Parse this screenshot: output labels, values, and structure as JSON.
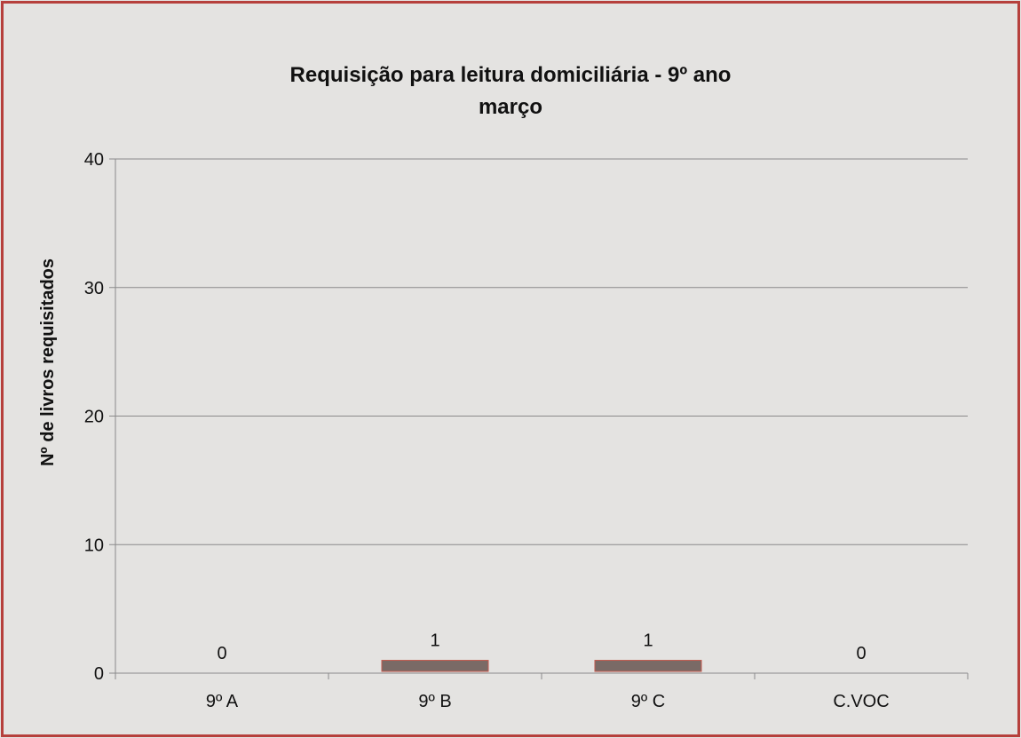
{
  "chart_data": {
    "type": "bar",
    "title": "Requisição para leitura domiciliária - 9º ano",
    "subtitle": "março",
    "xlabel": "",
    "ylabel": "Nº de livros requisitados",
    "categories": [
      "9º A",
      "9º B",
      "9º C",
      "C.VOC"
    ],
    "values": [
      0,
      1,
      1,
      0
    ],
    "data_labels": [
      "0",
      "1",
      "1",
      "0"
    ],
    "ylim": [
      0,
      40
    ],
    "yticks": [
      0,
      10,
      20,
      30,
      40
    ],
    "ytick_labels": [
      "0",
      "10",
      "20",
      "30",
      "40"
    ],
    "grid": true,
    "legend": "none",
    "colors": {
      "background": "#e4e3e1",
      "border": "#b6403c",
      "bar": "#7a6a66",
      "bar_edge": "#c25a4e",
      "grid": "#8a8a8a",
      "axis": "#8a8a8a"
    }
  }
}
